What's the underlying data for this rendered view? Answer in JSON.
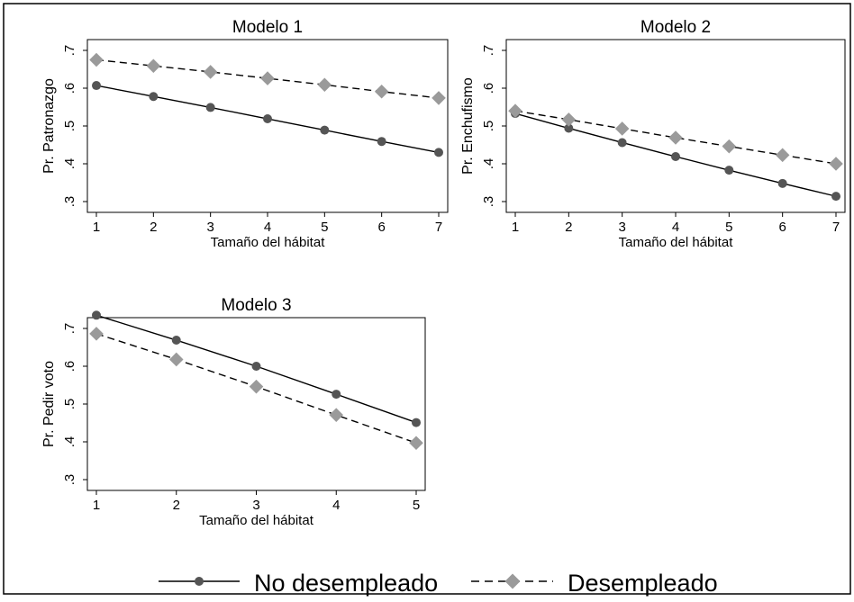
{
  "chart_data": [
    {
      "type": "line",
      "title": "Modelo 1",
      "xlabel": "Tamaño del hábitat",
      "ylabel": "Pr. Patronazgo",
      "x": [
        1,
        2,
        3,
        4,
        5,
        6,
        7
      ],
      "xticks": [
        "1",
        "2",
        "3",
        "4",
        "5",
        "6",
        "7"
      ],
      "yticks": [
        ".3",
        ".4",
        ".5",
        ".6",
        ".7"
      ],
      "xlim": [
        1,
        7
      ],
      "ylim": [
        0.3,
        0.7
      ],
      "series": [
        {
          "name": "No desempleado",
          "values": [
            0.607,
            0.578,
            0.549,
            0.519,
            0.489,
            0.459,
            0.43
          ]
        },
        {
          "name": "Desempleado",
          "values": [
            0.675,
            0.659,
            0.643,
            0.626,
            0.609,
            0.591,
            0.574
          ]
        }
      ]
    },
    {
      "type": "line",
      "title": "Modelo 2",
      "xlabel": "Tamaño del hábitat",
      "ylabel": "Pr. Enchufismo",
      "x": [
        1,
        2,
        3,
        4,
        5,
        6,
        7
      ],
      "xticks": [
        "1",
        "2",
        "3",
        "4",
        "5",
        "6",
        "7"
      ],
      "yticks": [
        ".3",
        ".4",
        ".5",
        ".6",
        ".7"
      ],
      "xlim": [
        1,
        7
      ],
      "ylim": [
        0.3,
        0.7
      ],
      "series": [
        {
          "name": "No desempleado",
          "values": [
            0.533,
            0.494,
            0.456,
            0.419,
            0.383,
            0.348,
            0.314
          ]
        },
        {
          "name": "Desempleado",
          "values": [
            0.54,
            0.517,
            0.493,
            0.469,
            0.446,
            0.423,
            0.4
          ]
        }
      ]
    },
    {
      "type": "line",
      "title": "Modelo 3",
      "xlabel": "Tamaño del hábitat",
      "ylabel": "Pr. Pedir voto",
      "x": [
        1,
        2,
        3,
        4,
        5
      ],
      "xticks": [
        "1",
        "2",
        "3",
        "4",
        "5"
      ],
      "yticks": [
        ".3",
        ".4",
        ".5",
        ".6",
        ".7"
      ],
      "xlim": [
        1,
        5
      ],
      "ylim": [
        0.3,
        0.7
      ],
      "series": [
        {
          "name": "No desempleado",
          "values": [
            0.735,
            0.669,
            0.6,
            0.526,
            0.451
          ]
        },
        {
          "name": "Desempleado",
          "values": [
            0.686,
            0.618,
            0.546,
            0.471,
            0.397
          ]
        }
      ]
    }
  ],
  "legend": {
    "position": "bottom",
    "items": [
      "No desempleado",
      "Desempleado"
    ]
  },
  "colors": {
    "no_desempleado": "#555555",
    "desempleado": "#9a9a9a",
    "line": "#000000"
  }
}
